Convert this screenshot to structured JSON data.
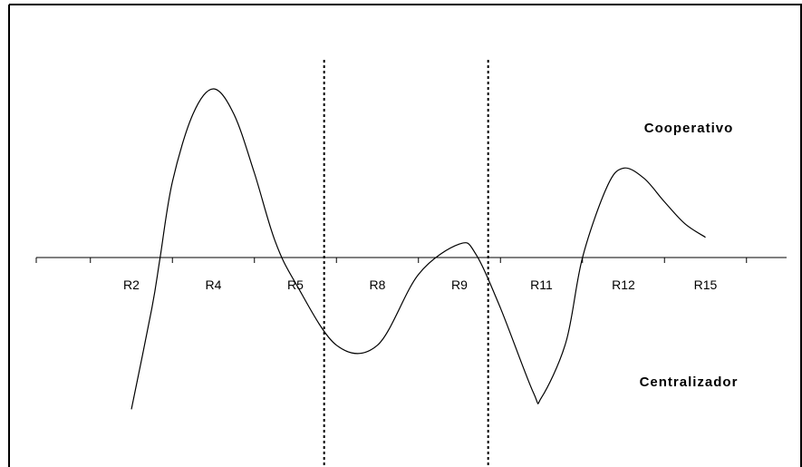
{
  "chart_data": {
    "type": "line",
    "categories": [
      "R2",
      "R4",
      "R5",
      "R8",
      "R9",
      "R11",
      "R12",
      "R15"
    ],
    "annotations": {
      "upper": "Cooperativo",
      "lower": "Centralizador"
    },
    "ylim": [
      -1.0,
      1.0
    ],
    "grid": false,
    "legend": "none",
    "dividers_after_categories": [
      "R5",
      "R9"
    ],
    "series": [
      {
        "x": [
          0.0,
          0.25,
          0.35,
          0.5,
          0.75,
          1.0,
          1.25,
          1.5,
          1.75,
          2.0,
          2.5,
          3.0,
          3.5,
          4.0,
          4.2,
          4.5,
          4.9,
          5.0,
          5.3,
          5.5,
          5.8,
          6.0,
          6.25,
          6.5,
          6.75,
          7.0
        ],
        "y": [
          -0.9,
          -0.3,
          0.0,
          0.45,
          0.85,
          1.0,
          0.85,
          0.5,
          0.1,
          -0.15,
          -0.52,
          -0.52,
          -0.1,
          0.08,
          0.02,
          -0.3,
          -0.8,
          -0.83,
          -0.5,
          0.0,
          0.42,
          0.53,
          0.47,
          0.33,
          0.2,
          0.12
        ]
      }
    ],
    "colors": {
      "line": "#000000",
      "axis": "#000000",
      "frame": "#000000",
      "divider": "#000000"
    }
  }
}
